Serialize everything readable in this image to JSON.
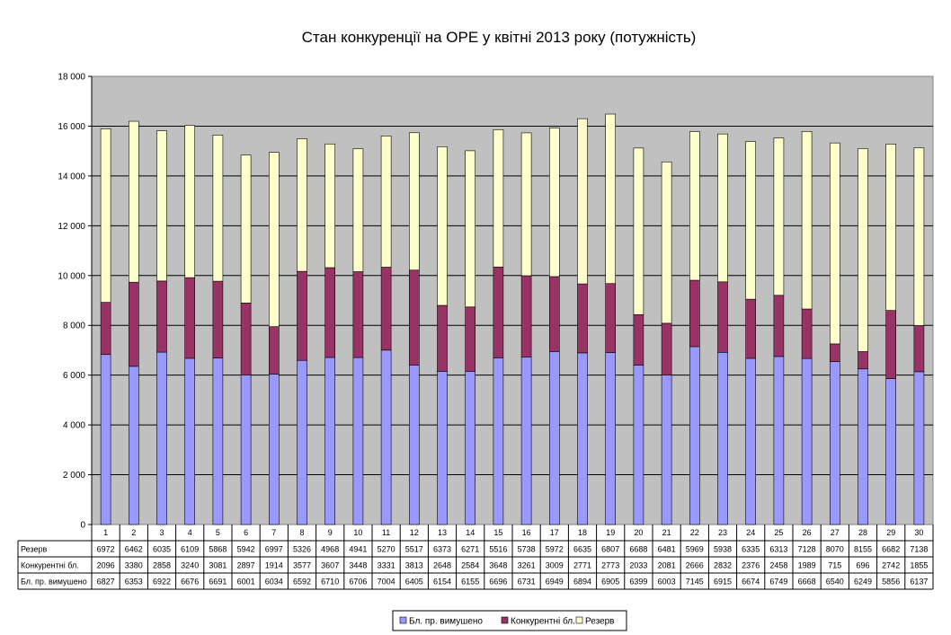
{
  "chart_data": {
    "type": "bar",
    "stacked": true,
    "title": "Стан конкуренції на ОРЕ  у квітні 2013 року (потужність)",
    "categories": [
      "1",
      "2",
      "3",
      "4",
      "5",
      "6",
      "7",
      "8",
      "9",
      "10",
      "11",
      "12",
      "13",
      "14",
      "15",
      "16",
      "17",
      "18",
      "19",
      "20",
      "21",
      "22",
      "23",
      "24",
      "25",
      "26",
      "27",
      "28",
      "29",
      "30"
    ],
    "series": [
      {
        "name": "Бл. пр. вимушено",
        "color": "#9999ff",
        "values": [
          6827,
          6353,
          6922,
          6676,
          6691,
          6001,
          6034,
          6592,
          6710,
          6706,
          7004,
          6405,
          6154,
          6155,
          6696,
          6731,
          6949,
          6894,
          6905,
          6399,
          6003,
          7145,
          6915,
          6674,
          6749,
          6668,
          6540,
          6249,
          5856,
          6137
        ]
      },
      {
        "name": "Конкурентні бл.",
        "color": "#993366",
        "values": [
          2096,
          3380,
          2858,
          3240,
          3081,
          2897,
          1914,
          3577,
          3607,
          3448,
          3331,
          3813,
          2648,
          2584,
          3648,
          3261,
          3009,
          2771,
          2773,
          2033,
          2081,
          2666,
          2832,
          2376,
          2458,
          1989,
          715,
          696,
          2742,
          1855
        ]
      },
      {
        "name": "Резерв",
        "color": "#ffffcc",
        "values": [
          6972,
          6462,
          6035,
          6109,
          5868,
          5942,
          6997,
          5326,
          4968,
          4941,
          5270,
          5517,
          6373,
          6271,
          5516,
          5738,
          5972,
          6635,
          6807,
          6688,
          6481,
          5969,
          5938,
          6335,
          6313,
          7128,
          8070,
          8155,
          6682,
          7138
        ]
      }
    ],
    "table_rows": [
      "Резерв",
      "Конкурентні бл.",
      "Бл. пр. вимушено"
    ],
    "ylim": [
      0,
      18000
    ],
    "yticks": [
      "0",
      "2 000",
      "4 000",
      "6 000",
      "8 000",
      "10 000",
      "12 000",
      "14 000",
      "16 000",
      "18 000"
    ],
    "ytick_values": [
      0,
      2000,
      4000,
      6000,
      8000,
      10000,
      12000,
      14000,
      16000,
      18000
    ],
    "plot_background": "#c0c0c0",
    "grid": true,
    "legend_position": "bottom"
  }
}
